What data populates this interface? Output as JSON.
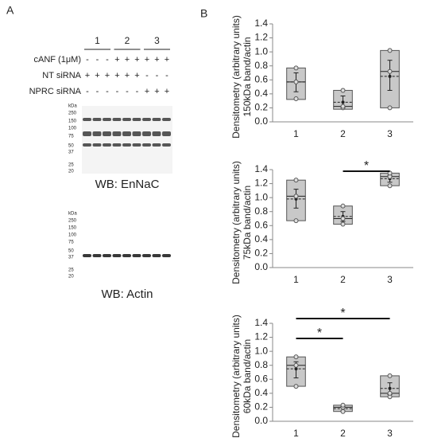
{
  "panel_a": {
    "label": "A",
    "groups": [
      "1",
      "2",
      "3"
    ],
    "rows": [
      {
        "name": "cANF (1μM)",
        "signs": [
          "-",
          "-",
          "-",
          "+",
          "+",
          "+",
          "+",
          "+",
          "+"
        ]
      },
      {
        "name": "NT siRNA",
        "signs": [
          "+",
          "+",
          "+",
          "+",
          "+",
          "+",
          "-",
          "-",
          "-"
        ]
      },
      {
        "name": "NPRC siRNA",
        "signs": [
          "-",
          "-",
          "-",
          "-",
          "-",
          "-",
          "+",
          "+",
          "+"
        ]
      }
    ],
    "markers": [
      "kDa",
      "250",
      "150",
      "100",
      "75",
      "50",
      "37",
      "25",
      "20"
    ],
    "blots": [
      "WB:  EnNaC",
      "WB:  Actin"
    ]
  },
  "panel_b_label": "B",
  "chart_data": [
    {
      "type": "box",
      "ylabel": [
        "Densitometry (arbitrary units)",
        "150kDa band/actin"
      ],
      "categories": [
        "1",
        "2",
        "3"
      ],
      "ylim": [
        0,
        1.4
      ],
      "yticks": [
        {
          "value": 0,
          "label": "0.0"
        },
        0.2,
        0.4,
        0.6,
        0.8,
        {
          "value": 1,
          "label": "1.0"
        },
        1.2,
        1.4
      ],
      "color": "#c8c8c8",
      "boxes": [
        {
          "box_low": 0.32,
          "box_high": 0.77,
          "median": 0.57,
          "mean": 0.57,
          "err_low": 0.43,
          "err_high": 0.7,
          "points": [
            0.33,
            0.57,
            0.77
          ]
        },
        {
          "box_low": 0.18,
          "box_high": 0.45,
          "median": 0.22,
          "mean": 0.28,
          "err_low": 0.2,
          "err_high": 0.37,
          "points": [
            0.2,
            0.22,
            0.45
          ]
        },
        {
          "box_low": 0.2,
          "box_high": 1.02,
          "median": 0.72,
          "mean": 0.65,
          "err_low": 0.45,
          "err_high": 0.88,
          "points": [
            0.2,
            0.72,
            1.02
          ]
        }
      ],
      "significance": []
    },
    {
      "type": "box",
      "ylabel": [
        "Densitometry (arbitrary units)",
        "75kDa band/actin"
      ],
      "categories": [
        "1",
        "2",
        "3"
      ],
      "ylim": [
        0,
        1.4
      ],
      "yticks": [
        {
          "value": 0,
          "label": "0.0"
        },
        0.2,
        0.4,
        0.6,
        0.8,
        {
          "value": 1,
          "label": "1.0"
        },
        1.2,
        1.4
      ],
      "color": "#c8c8c8",
      "boxes": [
        {
          "box_low": 0.67,
          "box_high": 1.25,
          "median": 1.02,
          "mean": 0.98,
          "err_low": 0.85,
          "err_high": 1.12,
          "points": [
            0.67,
            1.02,
            1.25
          ]
        },
        {
          "box_low": 0.62,
          "box_high": 0.88,
          "median": 0.7,
          "mean": 0.73,
          "err_low": 0.66,
          "err_high": 0.8,
          "points": [
            0.62,
            0.7,
            0.88
          ]
        },
        {
          "box_low": 1.17,
          "box_high": 1.35,
          "median": 1.3,
          "mean": 1.27,
          "err_low": 1.22,
          "err_high": 1.32,
          "points": [
            1.17,
            1.3,
            1.35
          ]
        }
      ],
      "significance": [
        {
          "from": 1,
          "to": 2,
          "label": "*"
        }
      ]
    },
    {
      "type": "box",
      "ylabel": [
        "Densitometry (arbitrary units)",
        "60kDa band/actin"
      ],
      "categories": [
        "1",
        "2",
        "3"
      ],
      "ylim": [
        0,
        1.4
      ],
      "yticks": [
        {
          "value": 0,
          "label": "0.0"
        },
        0.2,
        0.4,
        0.6,
        0.8,
        {
          "value": 1,
          "label": "1.0"
        },
        1.2,
        1.4
      ],
      "color": "#c8c8c8",
      "boxes": [
        {
          "box_low": 0.5,
          "box_high": 0.92,
          "median": 0.8,
          "mean": 0.75,
          "err_low": 0.62,
          "err_high": 0.85,
          "points": [
            0.5,
            0.8,
            0.92
          ]
        },
        {
          "box_low": 0.14,
          "box_high": 0.23,
          "median": 0.2,
          "mean": 0.18,
          "err_low": 0.15,
          "err_high": 0.21,
          "points": [
            0.14,
            0.2,
            0.23
          ]
        },
        {
          "box_low": 0.35,
          "box_high": 0.65,
          "median": 0.4,
          "mean": 0.47,
          "err_low": 0.38,
          "err_high": 0.55,
          "points": [
            0.35,
            0.4,
            0.65
          ]
        }
      ],
      "significance": [
        {
          "from": 0,
          "to": 1,
          "label": "*"
        },
        {
          "from": 0,
          "to": 2,
          "label": "*"
        }
      ]
    }
  ]
}
